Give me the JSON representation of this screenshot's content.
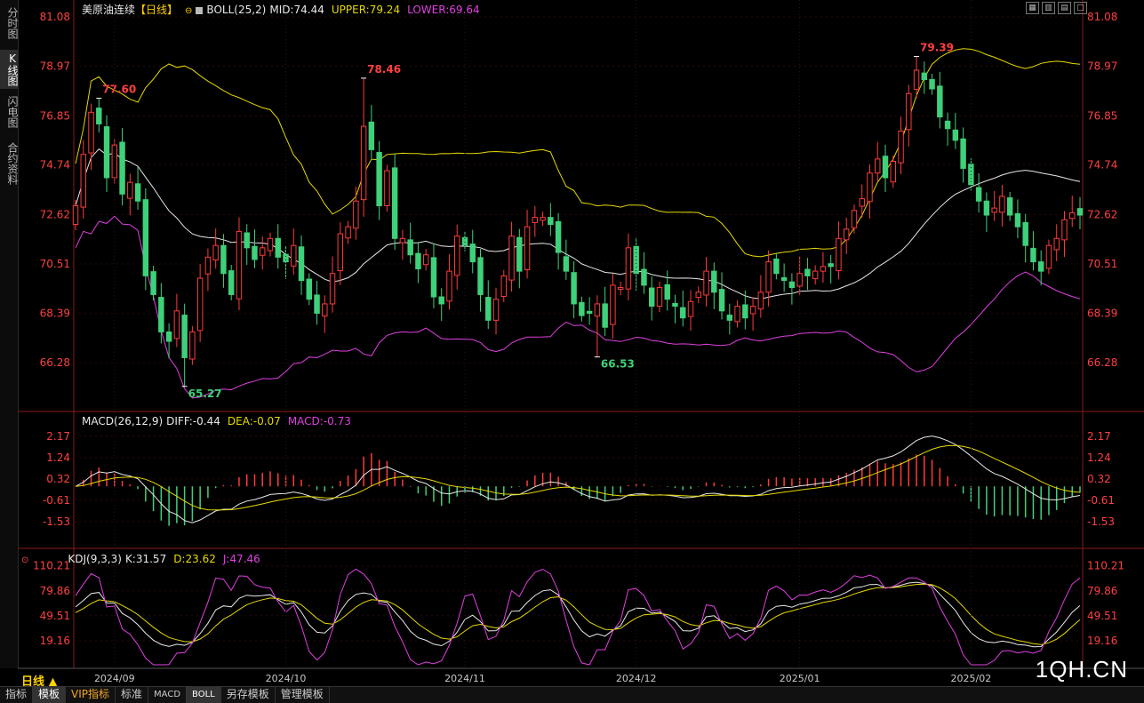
{
  "sidebar": {
    "tabs": [
      {
        "label": "分时图",
        "active": false
      },
      {
        "label": "K线图",
        "active": true
      },
      {
        "label": "闪电图",
        "active": false
      },
      {
        "label": "合约资料",
        "active": false
      }
    ]
  },
  "main_panel": {
    "symbol": "美原油连续",
    "period_tag": "【日线】",
    "indicator": "BOLL(25,2)",
    "mid": "MID:74.44",
    "upper": "UPPER:79.24",
    "lower": "LOWER:69.64"
  },
  "macd_panel": {
    "indicator": "MACD(26,12,9)",
    "diff": "DIFF:-0.44",
    "dea": "DEA:-0.07",
    "macd": "MACD:-0.73"
  },
  "kdj_panel": {
    "indicator": "KDJ(9,3,3)",
    "k": "K:31.57",
    "d": "D:23.62",
    "j": "J:47.46"
  },
  "period_button": "日线 ▲",
  "bottom_tabs": [
    {
      "label": "指标"
    },
    {
      "label": "模板",
      "selected": true
    },
    {
      "label": "VIP指标",
      "vip": true
    },
    {
      "label": "标准"
    },
    {
      "label": "MACD",
      "small": true
    },
    {
      "label": "BOLL",
      "small": true,
      "selected": true
    },
    {
      "label": "另存模板"
    },
    {
      "label": "管理模板"
    }
  ],
  "watermark": "1QH.CN",
  "colors": {
    "up": "#ff3b3b",
    "down": "#3fd17a",
    "boll_mid": "#e8e8e8",
    "boll_upper": "#e6d800",
    "boll_lower": "#e040e0",
    "axis_label": "#ff4040",
    "date_label": "#c8c8c8",
    "annotation_high": "#ff4040",
    "annotation_low": "#3fd17a"
  },
  "chart_data": [
    {
      "type": "candlestick",
      "title": "美原油连续 【日线】",
      "y_ticks": [
        "81.08",
        "78.97",
        "76.85",
        "74.74",
        "72.62",
        "70.51",
        "68.39",
        "66.28"
      ],
      "ylim": [
        64.5,
        81.5
      ],
      "x_ticks": [
        "2024/09",
        "2024/10",
        "2024/11",
        "2024/12",
        "2025/01",
        "2025/02"
      ],
      "annotations": [
        {
          "label": "77.60",
          "kind": "high"
        },
        {
          "label": "65.27",
          "kind": "low"
        },
        {
          "label": "78.46",
          "kind": "high"
        },
        {
          "label": "66.53",
          "kind": "low"
        },
        {
          "label": "79.39",
          "kind": "high"
        }
      ],
      "closes": [
        73.0,
        75.2,
        77.0,
        76.5,
        74.2,
        75.6,
        73.5,
        74.0,
        73.2,
        70.0,
        69.2,
        67.6,
        67.2,
        68.5,
        66.5,
        67.6,
        69.9,
        70.8,
        71.3,
        70.1,
        69.2,
        71.9,
        71.2,
        70.7,
        71.2,
        71.6,
        70.8,
        70.6,
        71.3,
        69.8,
        69.0,
        68.4,
        68.8,
        70.1,
        71.8,
        72.1,
        73.2,
        76.4,
        75.4,
        73.0,
        74.5,
        71.6,
        71.6,
        70.9,
        70.3,
        70.9,
        69.1,
        68.8,
        70.2,
        71.7,
        71.3,
        70.6,
        69.2,
        68.1,
        69.0,
        70.0,
        71.7,
        70.2,
        72.1,
        72.5,
        72.5,
        72.2,
        71.0,
        70.2,
        68.8,
        68.3,
        68.4,
        68.8,
        67.8,
        69.6,
        69.5,
        71.2,
        70.1,
        69.6,
        68.7,
        69.5,
        69.0,
        68.7,
        68.2,
        68.9,
        69.3,
        70.2,
        69.3,
        68.5,
        68.1,
        68.7,
        68.2,
        68.7,
        69.3,
        70.6,
        70.1,
        69.8,
        69.5,
        70.1,
        70.0,
        70.2,
        70.4,
        70.4,
        71.6,
        72.0,
        72.8,
        73.3,
        74.4,
        75.0,
        74.2,
        74.9,
        76.2,
        77.8,
        78.8,
        78.4,
        78.0,
        76.8,
        76.3,
        75.8,
        74.6,
        73.9,
        73.2,
        72.6,
        72.9,
        73.4,
        72.6,
        72.1,
        71.3,
        70.6,
        70.2,
        71.3,
        71.6,
        72.4,
        72.7,
        72.6
      ]
    },
    {
      "type": "bar",
      "title": "MACD(26,12,9)",
      "y_ticks": [
        "2.17",
        "1.24",
        "0.32",
        "-0.61",
        "-1.53"
      ],
      "ylim": [
        -2.3,
        2.7
      ],
      "series_names": [
        "DIFF",
        "DEA",
        "MACD"
      ]
    },
    {
      "type": "line",
      "title": "KDJ(9,3,3)",
      "y_ticks": [
        "110.21",
        "79.86",
        "49.51",
        "19.16"
      ],
      "ylim": [
        -10,
        125
      ],
      "series_names": [
        "K",
        "D",
        "J"
      ]
    }
  ]
}
